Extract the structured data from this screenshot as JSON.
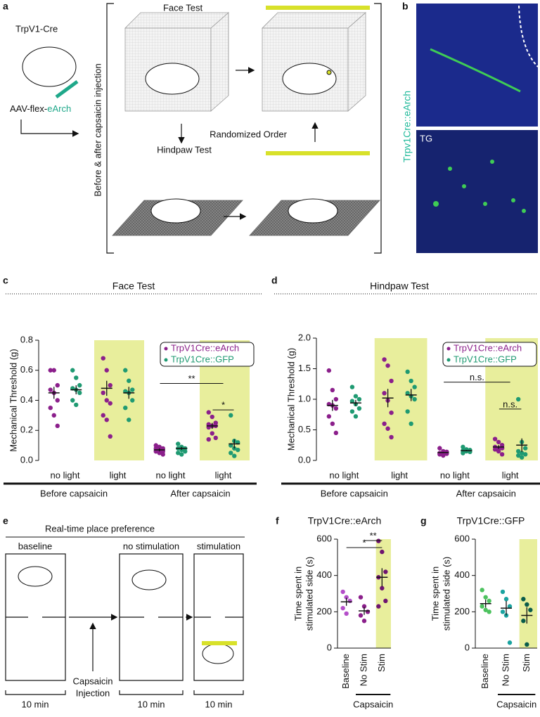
{
  "panel_labels": [
    "a",
    "b",
    "c",
    "d",
    "e",
    "f",
    "g"
  ],
  "diagram_a": {
    "mouse_line": "TrpV1-Cre",
    "virus_prefix": "AAV-flex-",
    "virus_name": "eArch",
    "face_test": "Face Test",
    "hindpaw_test": "Hindpaw Test",
    "order": "Randomized Order",
    "side_label": "Before & after capsaicin injection"
  },
  "image_b": {
    "label": "Trpv1Cre::eArch",
    "region": "TG"
  },
  "diagram_e": {
    "title": "Real-time place preference",
    "phases": [
      "baseline",
      "no stimulation",
      "stimulation"
    ],
    "injection": [
      "Capsaicin",
      "Injection"
    ],
    "durations": [
      "10 min",
      "10 min",
      "10 min"
    ]
  },
  "chart_data": [
    {
      "type": "strip",
      "title": "Face Test",
      "ylabel": [
        "Mechanical Threshold (g)"
      ],
      "categories": [
        "no light",
        "light",
        "no light",
        "light"
      ],
      "group_labels": [
        "Before capsaicin",
        "After capsaicin"
      ],
      "series": [
        {
          "name": "TrpV1Cre::eArch",
          "color": "#8b1f8b",
          "values": [
            [
              0.6,
              0.6,
              0.5,
              0.47,
              0.45,
              0.4,
              0.35,
              0.3,
              0.23
            ],
            [
              0.68,
              0.6,
              0.5,
              0.45,
              0.4,
              0.38,
              0.3,
              0.27,
              0.16
            ],
            [
              0.1,
              0.09,
              0.08,
              0.08,
              0.07,
              0.06,
              0.06,
              0.05,
              0.04
            ],
            [
              0.32,
              0.29,
              0.25,
              0.24,
              0.23,
              0.23,
              0.22,
              0.18,
              0.15,
              0.14
            ]
          ],
          "mean": [
            0.45,
            0.48,
            0.07,
            0.23
          ],
          "sem": [
            0.04,
            0.05,
            0.01,
            0.02
          ]
        },
        {
          "name": "TrpV1Cre::GFP",
          "color": "#1f9a72",
          "values": [
            [
              0.6,
              0.55,
              0.5,
              0.48,
              0.47,
              0.45,
              0.4,
              0.37
            ],
            [
              0.6,
              0.53,
              0.47,
              0.46,
              0.45,
              0.4,
              0.35,
              0.27
            ],
            [
              0.11,
              0.09,
              0.08,
              0.08,
              0.07,
              0.06,
              0.05,
              0.04
            ],
            [
              0.3,
              0.13,
              0.12,
              0.1,
              0.08,
              0.07,
              0.05,
              0.03
            ]
          ],
          "mean": [
            0.47,
            0.45,
            0.08,
            0.11
          ],
          "sem": [
            0.03,
            0.04,
            0.01,
            0.03
          ]
        }
      ],
      "ylim": [
        0,
        0.8
      ],
      "yticks": [
        {
          "value": 0,
          "label": "0.0"
        },
        0.2,
        0.4,
        0.6,
        0.8
      ],
      "shaded_categories": [
        1,
        3
      ],
      "shade_color": "#e8ee9c",
      "legend": "upper right",
      "annotations": [
        "**",
        "*"
      ]
    },
    {
      "type": "strip",
      "title": "Hindpaw Test",
      "ylabel": [
        "Mechanical Threshold (g)"
      ],
      "categories": [
        "no light",
        "light",
        "no light",
        "light"
      ],
      "group_labels": [
        "Before capsaicin",
        "After capsaicin"
      ],
      "series": [
        {
          "name": "TrpV1Cre::eArch",
          "color": "#8b1f8b",
          "values": [
            [
              1.47,
              1.15,
              1.0,
              0.92,
              0.9,
              0.85,
              0.72,
              0.6,
              0.45
            ],
            [
              1.65,
              1.55,
              1.3,
              1.1,
              0.98,
              0.78,
              0.6,
              0.52,
              0.38
            ],
            [
              0.2,
              0.15,
              0.14,
              0.12,
              0.12,
              0.11,
              0.1,
              0.08
            ],
            [
              0.35,
              0.3,
              0.25,
              0.22,
              0.2,
              0.2,
              0.18,
              0.15,
              0.1
            ]
          ],
          "mean": [
            0.9,
            1.02,
            0.13,
            0.22
          ],
          "sem": [
            0.09,
            0.15,
            0.01,
            0.03
          ]
        },
        {
          "name": "TrpV1Cre::GFP",
          "color": "#1f9a72",
          "values": [
            [
              1.2,
              1.05,
              1.0,
              0.97,
              0.92,
              0.85,
              0.8,
              0.72
            ],
            [
              1.45,
              1.3,
              1.2,
              1.1,
              1.05,
              1.0,
              0.8,
              0.6
            ],
            [
              0.22,
              0.18,
              0.17,
              0.16,
              0.15,
              0.14,
              0.12
            ],
            [
              1.0,
              0.3,
              0.2,
              0.15,
              0.12,
              0.1,
              0.08,
              0.05
            ]
          ],
          "mean": [
            0.94,
            1.07,
            0.16,
            0.25
          ],
          "sem": [
            0.05,
            0.1,
            0.01,
            0.11
          ]
        }
      ],
      "ylim": [
        0,
        2.0
      ],
      "yticks": [
        {
          "value": 0,
          "label": "0.0"
        },
        0.5,
        {
          "value": 1,
          "label": "1.0"
        },
        1.5,
        {
          "value": 2,
          "label": "2.0"
        }
      ],
      "shaded_categories": [
        1,
        3
      ],
      "shade_color": "#e8ee9c",
      "legend": "upper right",
      "annotations": [
        "n.s.",
        "n.s."
      ]
    },
    {
      "type": "strip",
      "title": "TrpV1Cre::eArch",
      "ylabel": [
        "Time spent in",
        "stimulated side (s)"
      ],
      "categories": [
        "Baseline",
        "No Stim",
        "Stim"
      ],
      "group_labels": [
        "Capsaicin"
      ],
      "colors": [
        "#b44ec9",
        "#8b1f8b",
        "#6e1470"
      ],
      "values": [
        [
          310,
          280,
          260,
          220,
          190
        ],
        [
          280,
          230,
          200,
          180,
          150
        ],
        [
          590,
          530,
          420,
          390,
          330,
          260,
          230
        ]
      ],
      "mean": [
        255,
        205,
        390
      ],
      "sem": [
        22,
        22,
        50
      ],
      "ylim": [
        0,
        600
      ],
      "yticks": [
        0,
        200,
        400,
        600
      ],
      "shaded_categories": [
        2
      ],
      "shade_color": "#e8ee9c",
      "annotations": [
        "*",
        "**"
      ]
    },
    {
      "type": "strip",
      "title": "TrpV1Cre::GFP",
      "ylabel": [
        "Time spent in",
        "stimulated side (s)"
      ],
      "categories": [
        "Baseline",
        "No Stim",
        "Stim"
      ],
      "group_labels": [
        "Capsaicin"
      ],
      "colors": [
        "#4cc25e",
        "#1aa3a0",
        "#0a5c4a"
      ],
      "values": [
        [
          320,
          280,
          260,
          230,
          210,
          200
        ],
        [
          310,
          270,
          230,
          200,
          180,
          30
        ],
        [
          270,
          240,
          210,
          150,
          20
        ]
      ],
      "mean": [
        245,
        220,
        180
      ],
      "sem": [
        22,
        40,
        45
      ],
      "ylim": [
        0,
        600
      ],
      "yticks": [
        0,
        200,
        400,
        600
      ],
      "shaded_categories": [
        2
      ],
      "shade_color": "#e8ee9c",
      "annotations": []
    }
  ]
}
